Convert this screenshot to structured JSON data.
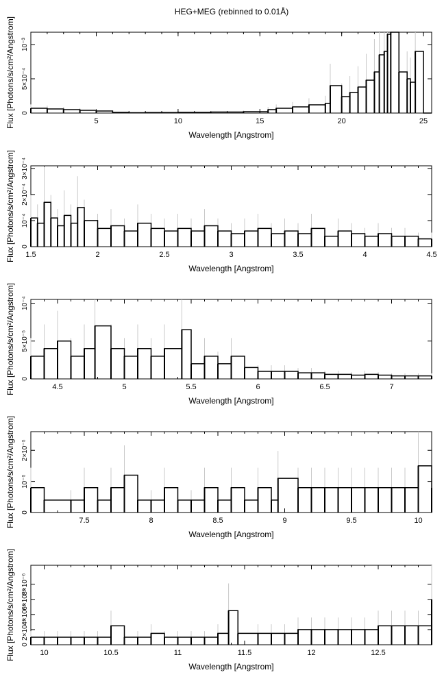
{
  "title": "HEG+MEG (rebinned to 0.01Å)",
  "style": {
    "line_color": "#000000",
    "error_color": "#c8c8c8"
  },
  "chart_data": [
    {
      "type": "line",
      "title": "HEG+MEG (rebinned to 0.01Å)",
      "xlabel": "Wavelength [Angstrom]",
      "ylabel": "Flux [Photons/s/cm²/Angstrom]",
      "xlim": [
        1.0,
        25.5
      ],
      "ylim": [
        0,
        0.00118
      ],
      "xticks": [
        5,
        10,
        15,
        20,
        25
      ],
      "yticks": [
        {
          "v": 0,
          "label": "0"
        },
        {
          "v": 0.0005,
          "label": "5×10⁻⁴"
        },
        {
          "v": 0.001,
          "label": "10⁻³"
        }
      ],
      "series": [
        {
          "x": [
            1.0,
            2.0,
            3.0,
            4.0,
            5.0,
            6.0,
            7.0,
            8.0,
            10.0,
            12.0,
            14.0,
            15.5,
            16.0,
            17.0,
            18.0,
            19.0,
            19.3,
            20.0,
            20.5,
            21.0,
            21.5,
            22.0,
            22.3,
            22.6,
            22.8,
            23.0,
            23.5,
            24.0,
            24.2,
            24.5,
            25.0,
            25.5
          ],
          "y": [
            7e-05,
            6e-05,
            5e-05,
            4e-05,
            3e-05,
            1e-05,
            5e-06,
            8e-06,
            1e-05,
            1.5e-05,
            2e-05,
            5e-05,
            7e-05,
            9e-05,
            0.00012,
            0.00014,
            0.0004,
            0.00024,
            0.0003,
            0.00038,
            0.00048,
            0.0006,
            0.00085,
            0.0009,
            0.00115,
            0.00118,
            0.0006,
            0.0005,
            0.00045,
            0.0009,
            0.0,
            0.0
          ]
        }
      ]
    },
    {
      "type": "line",
      "xlabel": "Wavelength [Angstrom]",
      "ylabel": "Flux [Photons/s/cm²/Angstrom]",
      "xlim": [
        1.5,
        4.5
      ],
      "ylim": [
        0,
        0.00031
      ],
      "xticks": [
        1.5,
        2,
        2.5,
        3,
        3.5,
        4,
        4.5
      ],
      "yticks": [
        {
          "v": 0,
          "label": "0"
        },
        {
          "v": 0.0001,
          "label": "10⁻⁴"
        },
        {
          "v": 0.0002,
          "label": "2×10⁻⁴"
        },
        {
          "v": 0.0003,
          "label": "3×10⁻⁴"
        }
      ],
      "series": [
        {
          "x": [
            1.5,
            1.55,
            1.6,
            1.65,
            1.7,
            1.75,
            1.8,
            1.85,
            1.9,
            2.0,
            2.1,
            2.2,
            2.3,
            2.4,
            2.5,
            2.6,
            2.7,
            2.8,
            2.9,
            3.0,
            3.1,
            3.2,
            3.3,
            3.4,
            3.5,
            3.6,
            3.7,
            3.8,
            3.9,
            4.0,
            4.1,
            4.2,
            4.3,
            4.4,
            4.5
          ],
          "y": [
            0.00011,
            9e-05,
            0.00017,
            0.00011,
            8e-05,
            0.00012,
            9e-05,
            0.00015,
            0.0001,
            7e-05,
            8e-05,
            6e-05,
            9e-05,
            7e-05,
            6e-05,
            7e-05,
            6e-05,
            8e-05,
            6e-05,
            5e-05,
            6e-05,
            7e-05,
            5e-05,
            6e-05,
            5e-05,
            7e-05,
            4e-05,
            6e-05,
            5e-05,
            4e-05,
            5e-05,
            4e-05,
            4e-05,
            3e-05,
            3e-05
          ]
        }
      ]
    },
    {
      "type": "line",
      "xlabel": "Wavelength [Angstrom]",
      "ylabel": "Flux [Photons/s/cm²/Angstrom]",
      "xlim": [
        4.3,
        7.3
      ],
      "ylim": [
        0,
        0.000105
      ],
      "xticks": [
        4.5,
        5,
        5.5,
        6,
        6.5,
        7
      ],
      "yticks": [
        {
          "v": 0,
          "label": "0"
        },
        {
          "v": 5e-05,
          "label": "5×10⁻⁵"
        },
        {
          "v": 0.0001,
          "label": "10⁻⁴"
        }
      ],
      "series": [
        {
          "x": [
            4.3,
            4.4,
            4.5,
            4.6,
            4.7,
            4.78,
            4.9,
            5.0,
            5.1,
            5.2,
            5.3,
            5.43,
            5.5,
            5.6,
            5.7,
            5.8,
            5.9,
            6.0,
            6.1,
            6.2,
            6.3,
            6.4,
            6.5,
            6.6,
            6.7,
            6.8,
            6.9,
            7.0,
            7.1,
            7.2,
            7.3
          ],
          "y": [
            3e-05,
            4e-05,
            5e-05,
            3e-05,
            4e-05,
            7e-05,
            4e-05,
            3e-05,
            4e-05,
            3e-05,
            4e-05,
            6.5e-05,
            2e-05,
            3e-05,
            2e-05,
            3e-05,
            1.5e-05,
            1e-05,
            1e-05,
            1e-05,
            8e-06,
            8e-06,
            6e-06,
            6e-06,
            5e-06,
            6e-06,
            5e-06,
            4e-06,
            4e-06,
            4e-06,
            4e-06
          ]
        }
      ]
    },
    {
      "type": "line",
      "xlabel": "Wavelength [Angstrom]",
      "ylabel": "Flux [Photons/s/cm²/Angstrom]",
      "xlim": [
        7.1,
        10.1
      ],
      "ylim": [
        0,
        2.6e-05
      ],
      "xticks": [
        7.5,
        8,
        8.5,
        9,
        9.5,
        10
      ],
      "yticks": [
        {
          "v": 0,
          "label": "0"
        },
        {
          "v": 1e-05,
          "label": "10⁻⁵"
        },
        {
          "v": 2e-05,
          "label": "2×10⁻⁵"
        }
      ],
      "series": [
        {
          "x": [
            7.1,
            7.2,
            7.4,
            7.5,
            7.6,
            7.7,
            7.8,
            7.9,
            8.0,
            8.1,
            8.2,
            8.3,
            8.4,
            8.5,
            8.6,
            8.7,
            8.8,
            8.9,
            8.95,
            9.1,
            9.2,
            9.3,
            9.4,
            9.5,
            9.6,
            9.7,
            9.8,
            9.9,
            10.0,
            10.1
          ],
          "y": [
            8e-06,
            4e-06,
            4e-06,
            8e-06,
            4e-06,
            8e-06,
            1.2e-05,
            4e-06,
            4e-06,
            8e-06,
            4e-06,
            4e-06,
            8e-06,
            4e-06,
            8e-06,
            4e-06,
            8e-06,
            4e-06,
            1.1e-05,
            8e-06,
            8e-06,
            8e-06,
            8e-06,
            8e-06,
            8e-06,
            8e-06,
            8e-06,
            8e-06,
            1.5e-05,
            8e-06
          ]
        }
      ]
    },
    {
      "type": "line",
      "xlabel": "Wavelength [Angstrom]",
      "ylabel": "Flux [Photons/s/cm²/Angstrom]",
      "xlim": [
        9.9,
        12.9
      ],
      "ylim": [
        0,
        1.05e-05
      ],
      "xticks": [
        10,
        10.5,
        11,
        11.5,
        12,
        12.5
      ],
      "yticks": [
        {
          "v": 0,
          "label": "0"
        },
        {
          "v": 2e-06,
          "label": "2×10⁻⁶"
        },
        {
          "v": 4e-06,
          "label": "4×10⁻⁶"
        },
        {
          "v": 6e-06,
          "label": "6×10⁻⁶"
        },
        {
          "v": 8e-06,
          "label": "8×10⁻⁶"
        }
      ],
      "series": [
        {
          "x": [
            9.9,
            10.0,
            10.1,
            10.2,
            10.3,
            10.4,
            10.5,
            10.6,
            10.7,
            10.8,
            10.9,
            11.0,
            11.1,
            11.2,
            11.3,
            11.38,
            11.45,
            11.6,
            11.7,
            11.8,
            11.9,
            12.0,
            12.1,
            12.2,
            12.3,
            12.4,
            12.5,
            12.6,
            12.7,
            12.8,
            12.9
          ],
          "y": [
            1e-06,
            1e-06,
            1e-06,
            1e-06,
            1e-06,
            1e-06,
            2.5e-06,
            1e-06,
            1e-06,
            1.5e-06,
            1e-06,
            1e-06,
            1e-06,
            1e-06,
            1.5e-06,
            4.5e-06,
            1.5e-06,
            1.5e-06,
            1.5e-06,
            1.5e-06,
            2e-06,
            2e-06,
            2e-06,
            2e-06,
            2e-06,
            2e-06,
            2.5e-06,
            2.5e-06,
            2.5e-06,
            2.5e-06,
            6e-06
          ]
        }
      ]
    }
  ]
}
